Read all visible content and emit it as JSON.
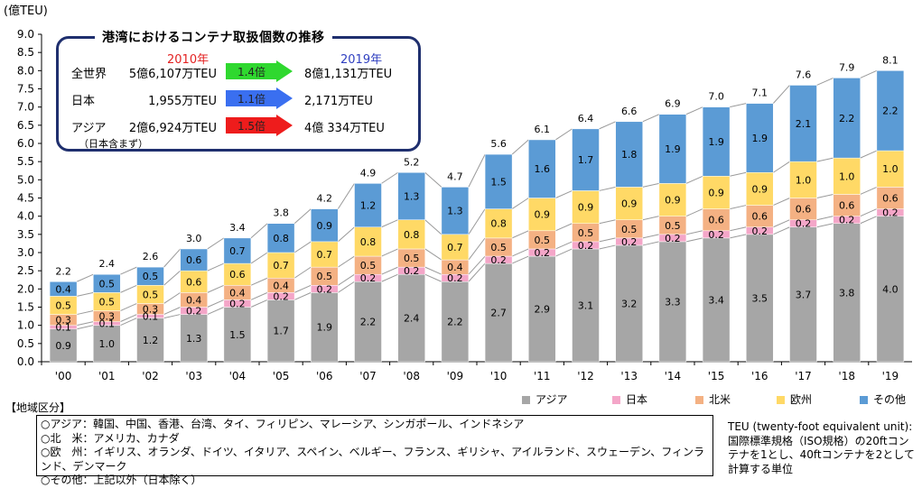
{
  "chart_data": {
    "type": "bar",
    "stacked": true,
    "unit_label": "(億TEU)",
    "categories": [
      "'00",
      "'01",
      "'02",
      "'03",
      "'04",
      "'05",
      "'06",
      "'07",
      "'08",
      "'09",
      "'10",
      "'11",
      "'12",
      "'13",
      "'14",
      "'15",
      "'16",
      "'17",
      "'18",
      "'19"
    ],
    "totals": [
      2.2,
      2.4,
      2.6,
      3.0,
      3.4,
      3.8,
      4.2,
      4.9,
      5.2,
      4.7,
      5.6,
      6.1,
      6.4,
      6.6,
      6.9,
      7.0,
      7.1,
      7.6,
      7.9,
      8.1
    ],
    "series": [
      {
        "name": "アジア",
        "color": "#a6a6a6",
        "values": [
          0.9,
          1.0,
          1.2,
          1.3,
          1.5,
          1.7,
          1.9,
          2.2,
          2.4,
          2.2,
          2.7,
          2.9,
          3.1,
          3.2,
          3.3,
          3.4,
          3.5,
          3.7,
          3.8,
          4.0
        ]
      },
      {
        "name": "日本",
        "color": "#f4a6c8",
        "values": [
          0.1,
          0.1,
          0.1,
          0.2,
          0.2,
          0.2,
          0.2,
          0.2,
          0.2,
          0.2,
          0.2,
          0.2,
          0.2,
          0.2,
          0.2,
          0.2,
          0.2,
          0.2,
          0.2,
          0.2
        ]
      },
      {
        "name": "北米",
        "color": "#f4b183",
        "values": [
          0.3,
          0.3,
          0.3,
          0.4,
          0.4,
          0.4,
          0.5,
          0.5,
          0.5,
          0.4,
          0.5,
          0.5,
          0.5,
          0.5,
          0.5,
          0.6,
          0.6,
          0.6,
          0.6,
          0.6
        ]
      },
      {
        "name": "欧州",
        "color": "#ffd966",
        "values": [
          0.5,
          0.5,
          0.5,
          0.6,
          0.6,
          0.7,
          0.7,
          0.8,
          0.8,
          0.7,
          0.8,
          0.9,
          0.9,
          0.9,
          0.9,
          0.9,
          0.9,
          1.0,
          1.0,
          1.0
        ]
      },
      {
        "name": "その他",
        "color": "#5b9bd5",
        "values": [
          0.4,
          0.5,
          0.5,
          0.6,
          0.7,
          0.8,
          0.9,
          1.2,
          1.3,
          1.3,
          1.5,
          1.6,
          1.7,
          1.8,
          1.9,
          1.9,
          1.9,
          2.1,
          2.2,
          2.2
        ]
      }
    ],
    "ylim": [
      0,
      9.0
    ],
    "yticks": [
      "0.0",
      "0.5",
      "1.0",
      "1.5",
      "2.0",
      "2.5",
      "3.0",
      "3.5",
      "4.0",
      "4.5",
      "5.0",
      "5.5",
      "6.0",
      "6.5",
      "7.0",
      "7.5",
      "8.0",
      "8.5",
      "9.0"
    ],
    "grid": false,
    "legend_position": "bottom-right"
  },
  "infobox": {
    "title": "港湾におけるコンテナ取扱個数の推移",
    "year_from": "2010年",
    "year_to": "2019年",
    "year_from_color": "#e32222",
    "year_to_color": "#2f3fc0",
    "rows": [
      {
        "name": "全世界",
        "v2010": "5億6,107万TEU",
        "ratio": "1.4倍",
        "v2019": "8億1,131万TEU",
        "arrow_color": "#2fd82f",
        "note": ""
      },
      {
        "name": "日本",
        "v2010": "1,955万TEU",
        "ratio": "1.1倍",
        "v2019": "2,171万TEU",
        "arrow_color": "#3a6ff0",
        "note": ""
      },
      {
        "name": "アジア",
        "v2010": "2億6,924万TEU",
        "ratio": "1.5倍",
        "v2019": "4億 334万TEU",
        "arrow_color": "#ee1c1c",
        "note": "（日本含まず）"
      }
    ]
  },
  "regions": {
    "title": "【地域区分】",
    "lines": [
      "○アジア：韓国、中国、香港、台湾、タイ、フィリピン、マレーシア、シンガポール、インドネシア",
      "○北　米：アメリカ、カナダ",
      "○欧　州：イギリス、オランダ、ドイツ、イタリア、スペイン、ベルギー、フランス、ギリシャ、アイルランド、スウェーデン、フィンランド、デンマーク",
      "○その他：上記以外（日本除く）"
    ]
  },
  "teu_note": {
    "lines": [
      "TEU (twenty-foot equivalent unit):",
      "国際標準規格（ISO規格）の20ftコン",
      "テナを1とし、40ftコンテナを2として",
      "計算する単位"
    ]
  }
}
